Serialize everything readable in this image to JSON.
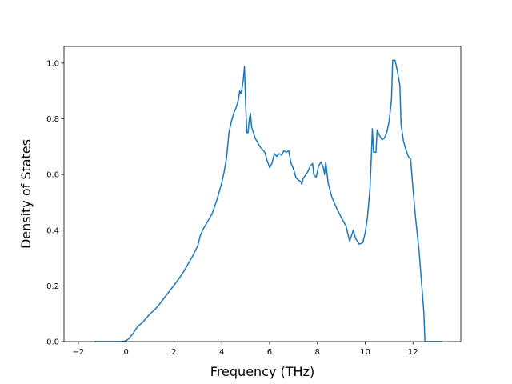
{
  "chart_data": {
    "type": "line",
    "title": "",
    "xlabel": "Frequency (THz)",
    "ylabel": "Density of States",
    "xlim": [
      -2.6,
      14.0
    ],
    "ylim": [
      0.0,
      1.06
    ],
    "xticks": [
      -2,
      0,
      2,
      4,
      6,
      8,
      10,
      12
    ],
    "xtick_labels": [
      "−2",
      "0",
      "2",
      "4",
      "6",
      "8",
      "10",
      "12"
    ],
    "yticks": [
      0.0,
      0.2,
      0.4,
      0.6,
      0.8,
      1.0
    ],
    "ytick_labels": [
      "0.0",
      "0.2",
      "0.4",
      "0.6",
      "0.8",
      "1.0"
    ],
    "grid": false,
    "legend": "none",
    "series": [
      {
        "color": "#1f77b4",
        "points": [
          [
            -1.3,
            0.0
          ],
          [
            -0.2,
            0.0
          ],
          [
            0.0,
            0.003
          ],
          [
            0.1,
            0.01
          ],
          [
            0.2,
            0.02
          ],
          [
            0.3,
            0.03
          ],
          [
            0.4,
            0.045
          ],
          [
            0.5,
            0.055
          ],
          [
            0.7,
            0.07
          ],
          [
            0.9,
            0.09
          ],
          [
            1.0,
            0.1
          ],
          [
            1.2,
            0.115
          ],
          [
            1.4,
            0.135
          ],
          [
            1.6,
            0.158
          ],
          [
            1.8,
            0.18
          ],
          [
            2.0,
            0.202
          ],
          [
            2.2,
            0.225
          ],
          [
            2.4,
            0.25
          ],
          [
            2.6,
            0.28
          ],
          [
            2.8,
            0.31
          ],
          [
            3.0,
            0.345
          ],
          [
            3.1,
            0.38
          ],
          [
            3.2,
            0.4
          ],
          [
            3.4,
            0.43
          ],
          [
            3.6,
            0.46
          ],
          [
            3.8,
            0.51
          ],
          [
            4.0,
            0.57
          ],
          [
            4.1,
            0.61
          ],
          [
            4.2,
            0.66
          ],
          [
            4.3,
            0.75
          ],
          [
            4.4,
            0.79
          ],
          [
            4.5,
            0.82
          ],
          [
            4.6,
            0.84
          ],
          [
            4.7,
            0.87
          ],
          [
            4.75,
            0.9
          ],
          [
            4.8,
            0.89
          ],
          [
            4.85,
            0.91
          ],
          [
            4.9,
            0.94
          ],
          [
            4.95,
            0.988
          ],
          [
            5.0,
            0.85
          ],
          [
            5.05,
            0.75
          ],
          [
            5.1,
            0.75
          ],
          [
            5.15,
            0.8
          ],
          [
            5.2,
            0.82
          ],
          [
            5.25,
            0.77
          ],
          [
            5.4,
            0.73
          ],
          [
            5.6,
            0.7
          ],
          [
            5.8,
            0.68
          ],
          [
            5.9,
            0.65
          ],
          [
            6.0,
            0.625
          ],
          [
            6.1,
            0.64
          ],
          [
            6.2,
            0.675
          ],
          [
            6.3,
            0.665
          ],
          [
            6.4,
            0.675
          ],
          [
            6.5,
            0.67
          ],
          [
            6.6,
            0.685
          ],
          [
            6.7,
            0.68
          ],
          [
            6.8,
            0.685
          ],
          [
            6.9,
            0.64
          ],
          [
            7.0,
            0.62
          ],
          [
            7.1,
            0.59
          ],
          [
            7.2,
            0.58
          ],
          [
            7.3,
            0.575
          ],
          [
            7.35,
            0.565
          ],
          [
            7.4,
            0.585
          ],
          [
            7.6,
            0.61
          ],
          [
            7.7,
            0.63
          ],
          [
            7.8,
            0.64
          ],
          [
            7.85,
            0.6
          ],
          [
            7.95,
            0.59
          ],
          [
            8.05,
            0.63
          ],
          [
            8.15,
            0.645
          ],
          [
            8.25,
            0.625
          ],
          [
            8.3,
            0.6
          ],
          [
            8.35,
            0.645
          ],
          [
            8.45,
            0.57
          ],
          [
            8.6,
            0.52
          ],
          [
            8.8,
            0.48
          ],
          [
            9.0,
            0.445
          ],
          [
            9.2,
            0.415
          ],
          [
            9.35,
            0.36
          ],
          [
            9.5,
            0.4
          ],
          [
            9.6,
            0.37
          ],
          [
            9.75,
            0.35
          ],
          [
            9.9,
            0.355
          ],
          [
            10.0,
            0.39
          ],
          [
            10.1,
            0.45
          ],
          [
            10.2,
            0.55
          ],
          [
            10.25,
            0.65
          ],
          [
            10.3,
            0.765
          ],
          [
            10.35,
            0.68
          ],
          [
            10.45,
            0.68
          ],
          [
            10.5,
            0.76
          ],
          [
            10.6,
            0.74
          ],
          [
            10.7,
            0.725
          ],
          [
            10.8,
            0.73
          ],
          [
            10.9,
            0.75
          ],
          [
            11.0,
            0.79
          ],
          [
            11.1,
            0.87
          ],
          [
            11.15,
            1.01
          ],
          [
            11.25,
            1.01
          ],
          [
            11.35,
            0.97
          ],
          [
            11.45,
            0.92
          ],
          [
            11.5,
            0.78
          ],
          [
            11.6,
            0.72
          ],
          [
            11.7,
            0.69
          ],
          [
            11.8,
            0.665
          ],
          [
            11.9,
            0.655
          ],
          [
            12.0,
            0.55
          ],
          [
            12.1,
            0.45
          ],
          [
            12.25,
            0.33
          ],
          [
            12.35,
            0.22
          ],
          [
            12.45,
            0.11
          ],
          [
            12.5,
            0.0
          ],
          [
            13.2,
            0.0
          ]
        ]
      }
    ]
  }
}
